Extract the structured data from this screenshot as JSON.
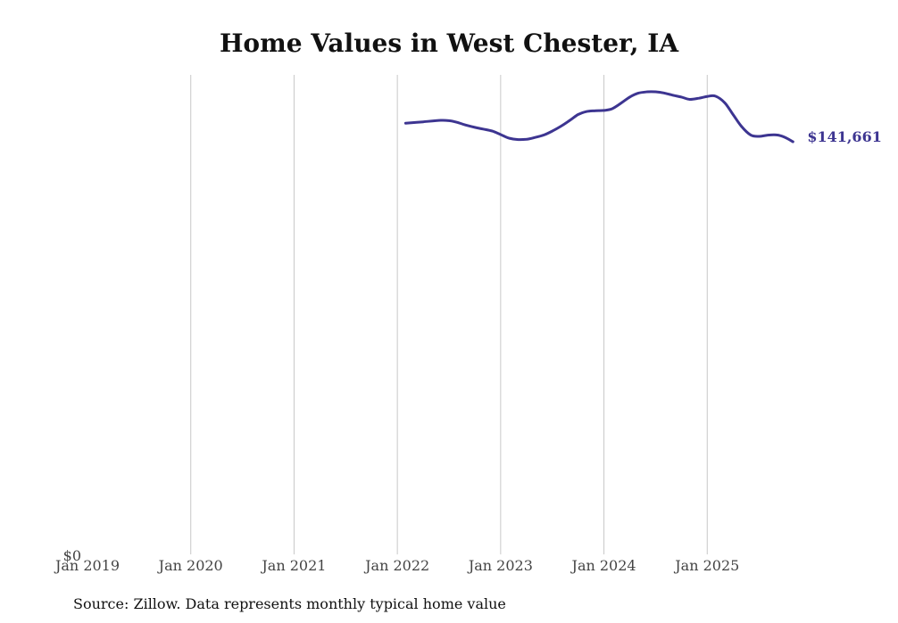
{
  "chart_data": {
    "type": "line",
    "title": "Home Values in West Chester, IA",
    "source": "Source: Zillow. Data represents monthly typical home value",
    "xlabel": "",
    "ylabel": "",
    "y_tick_labels": [
      "$0"
    ],
    "x_ticks": [
      "Jan 2019",
      "Jan 2020",
      "Jan 2021",
      "Jan 2022",
      "Jan 2023",
      "Jan 2024",
      "Jan 2025"
    ],
    "x_range": [
      2019.0,
      2026.0
    ],
    "ylim": [
      0,
      164000
    ],
    "grid": "vertical",
    "line_color": "#3d3591",
    "end_label": "$141,661",
    "series": [
      {
        "name": "Home value",
        "x": [
          2022.08,
          2022.25,
          2022.42,
          2022.5,
          2022.58,
          2022.67,
          2022.75,
          2022.83,
          2022.92,
          2023.0,
          2023.08,
          2023.17,
          2023.25,
          2023.33,
          2023.42,
          2023.5,
          2023.58,
          2023.67,
          2023.75,
          2023.83,
          2023.92,
          2024.0,
          2024.08,
          2024.17,
          2024.25,
          2024.33,
          2024.42,
          2024.5,
          2024.58,
          2024.67,
          2024.75,
          2024.83,
          2024.92,
          2025.0,
          2025.08,
          2025.17,
          2025.25,
          2025.33,
          2025.42,
          2025.5,
          2025.58,
          2025.67,
          2025.75,
          2025.83
        ],
        "values": [
          148000,
          148500,
          149000,
          148900,
          148300,
          147300,
          146600,
          146000,
          145300,
          144100,
          142900,
          142400,
          142500,
          143100,
          144000,
          145300,
          146900,
          149000,
          151000,
          152000,
          152300,
          152400,
          153000,
          155000,
          157000,
          158300,
          158800,
          158800,
          158400,
          157600,
          157000,
          156200,
          156600,
          157200,
          157300,
          155000,
          151000,
          147000,
          144000,
          143500,
          143900,
          144000,
          143200,
          141661
        ]
      }
    ]
  }
}
